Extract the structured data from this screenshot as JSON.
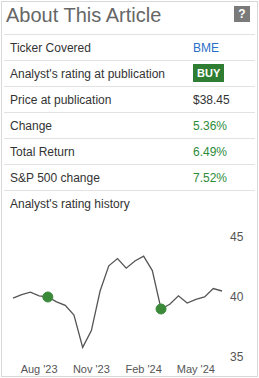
{
  "header": {
    "title": "About This Article",
    "help_icon": "?"
  },
  "table": {
    "rows": [
      {
        "label": "Ticker Covered",
        "value": "BME",
        "color": "#2a6fc9"
      },
      {
        "label": "Analyst's rating at publication",
        "value": "BUY",
        "color": "#ffffff",
        "background": "#2e7d32"
      },
      {
        "label": "Price at publication",
        "value": "$38.45",
        "color": "#333333"
      },
      {
        "label": "Change",
        "value": "5.36%",
        "color": "#2e8b3a"
      },
      {
        "label": "Total Return",
        "value": "6.49%",
        "color": "#2e8b3a"
      },
      {
        "label": "S&P 500 change",
        "value": "7.52%",
        "color": "#2e8b3a"
      }
    ]
  },
  "chart_title": "Analyst's rating history",
  "chart_data": {
    "type": "line",
    "categories": [
      null,
      null,
      null,
      "Aug '23",
      null,
      null,
      null,
      null,
      null,
      "Nov '23",
      null,
      null,
      null,
      null,
      null,
      "Feb '24",
      null,
      null,
      null,
      null,
      null,
      "May '24",
      null,
      null,
      null
    ],
    "values": [
      39.9,
      40.2,
      40.4,
      40.1,
      40.0,
      39.6,
      39.3,
      38.5,
      35.8,
      37.2,
      40.5,
      42.6,
      43.2,
      42.4,
      43.0,
      43.4,
      42.2,
      39.0,
      39.4,
      40.1,
      39.5,
      39.8,
      40.0,
      40.7,
      40.5
    ],
    "color": "#555555",
    "line_style": "solid",
    "ratings": {
      "values": [
        null,
        null,
        null,
        null,
        40.0,
        null,
        null,
        null,
        null,
        null,
        null,
        null,
        null,
        null,
        null,
        null,
        null,
        39.0,
        null,
        null,
        null,
        null,
        null,
        null,
        null
      ],
      "color": "#3a8a3a",
      "marker": "circle"
    },
    "ylim": [
      35,
      45
    ],
    "yticks": [
      35,
      40,
      45
    ],
    "grid": false
  }
}
